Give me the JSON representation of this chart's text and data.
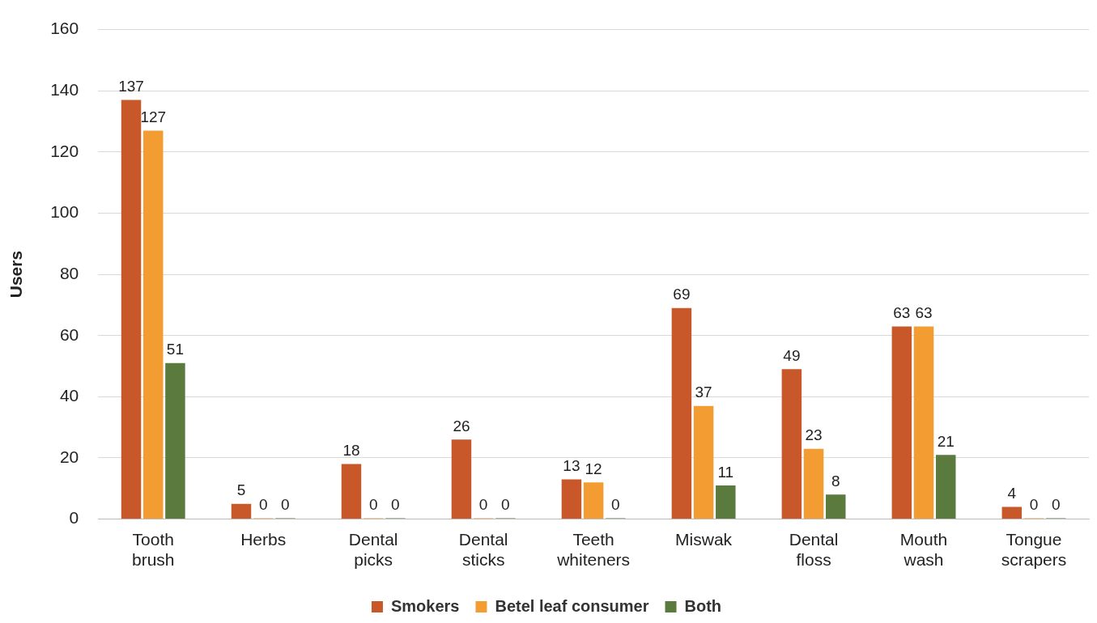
{
  "chart_data": {
    "type": "bar",
    "ylabel": "Users",
    "categories": [
      "Tooth brush",
      "Herbs",
      "Dental picks",
      "Dental sticks",
      "Teeth whiteners",
      "Miswak",
      "Dental floss",
      "Mouth wash",
      "Tongue scrapers"
    ],
    "series": [
      {
        "name": "Smokers",
        "color": "#c8572a",
        "values": [
          137,
          5,
          18,
          26,
          13,
          69,
          49,
          63,
          4
        ]
      },
      {
        "name": "Betel leaf consumer",
        "color": "#f39c31",
        "values": [
          127,
          0,
          0,
          0,
          12,
          37,
          23,
          63,
          0
        ]
      },
      {
        "name": "Both",
        "color": "#5b7a3e",
        "values": [
          51,
          0,
          0,
          0,
          0,
          11,
          8,
          21,
          0
        ]
      }
    ],
    "ylim": [
      0,
      160
    ],
    "yticks": [
      0,
      20,
      40,
      60,
      80,
      100,
      120,
      140,
      160
    ],
    "grid": "y",
    "legend": "bottom",
    "data_labels": true
  }
}
